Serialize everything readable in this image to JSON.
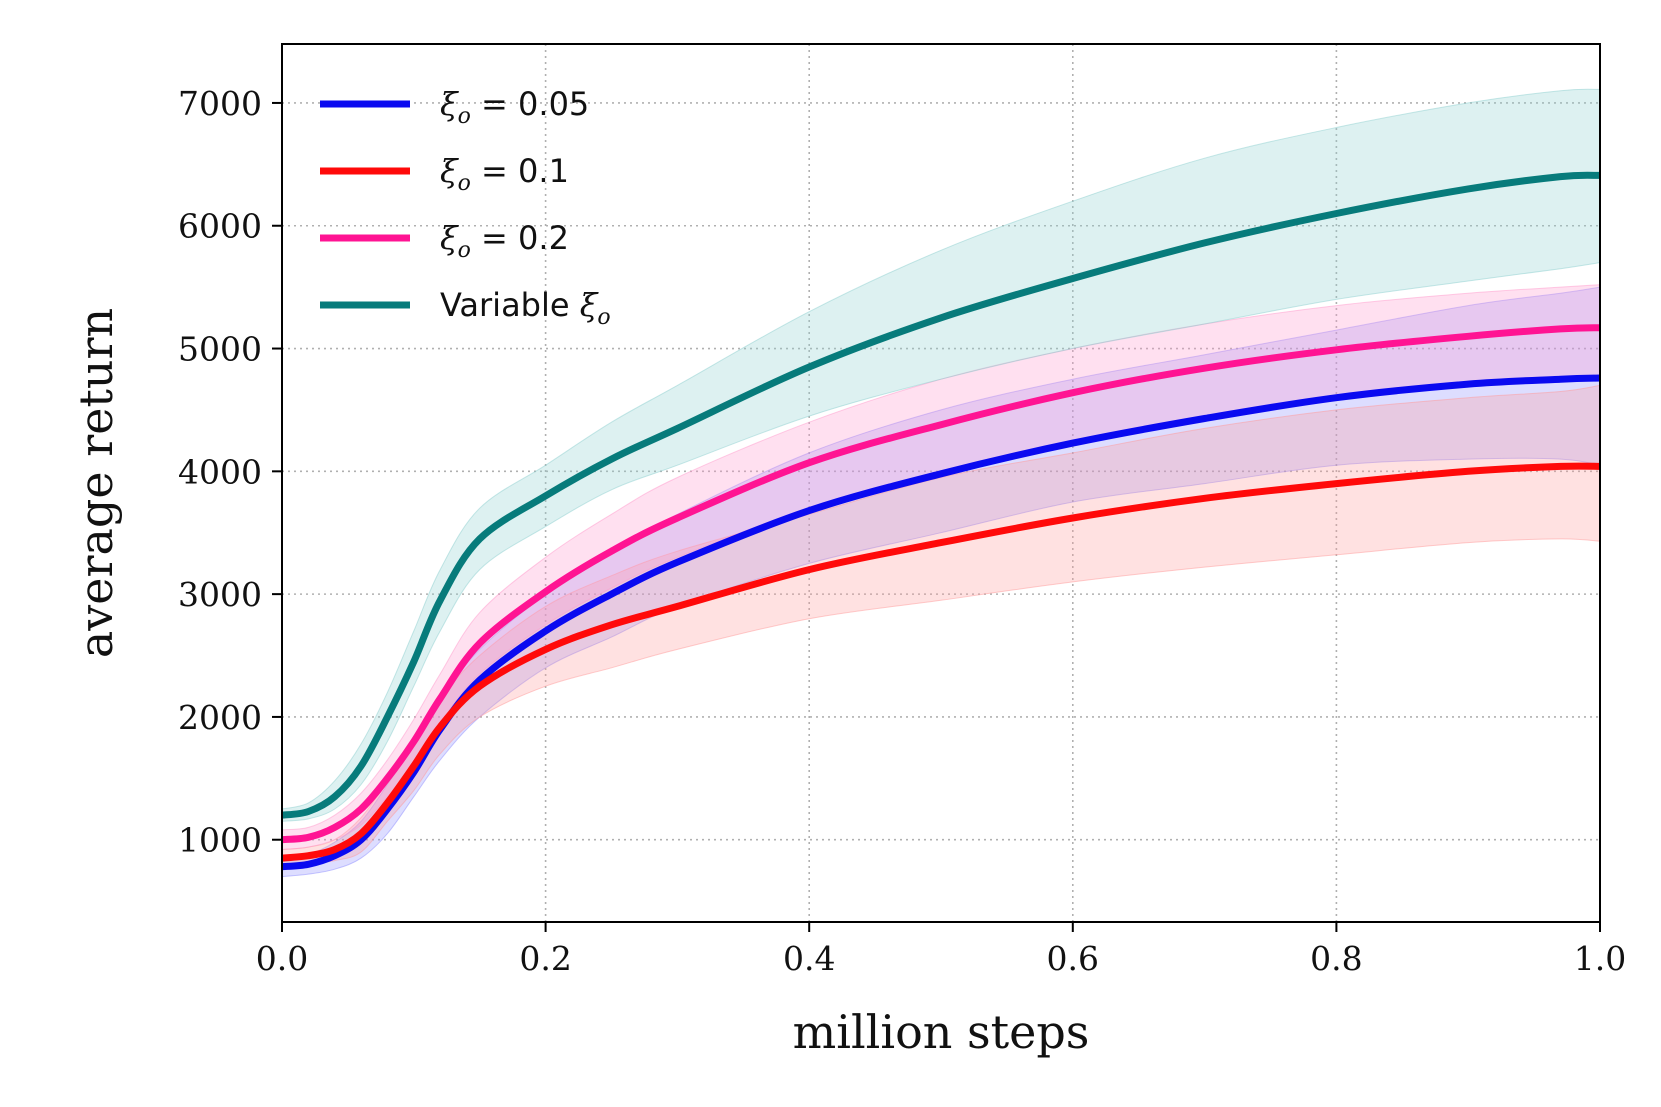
{
  "chart_data": {
    "type": "line",
    "title": "",
    "xlabel": "million steps",
    "ylabel": "average return",
    "xlim": [
      0.0,
      1.0
    ],
    "ylim": [
      330,
      7480
    ],
    "grid": true,
    "legend_position": "top-left",
    "x_ticks": [
      "0.0",
      "0.2",
      "0.4",
      "0.6",
      "0.8",
      "1.0"
    ],
    "y_ticks": [
      "1000",
      "2000",
      "3000",
      "4000",
      "5000",
      "6000",
      "7000"
    ],
    "x": [
      0.0,
      0.02,
      0.04,
      0.06,
      0.08,
      0.1,
      0.12,
      0.15,
      0.2,
      0.25,
      0.3,
      0.4,
      0.5,
      0.6,
      0.7,
      0.8,
      0.9,
      0.97,
      1.0
    ],
    "series": [
      {
        "name": "ξ_o = 0.05",
        "label_symbol": "ξ",
        "label_sub": "o",
        "label_rest": " = 0.05",
        "color": "#0a0af0",
        "band_color": "#9090ff",
        "values": [
          780,
          800,
          870,
          1000,
          1250,
          1550,
          1900,
          2300,
          2700,
          3000,
          3260,
          3680,
          3980,
          4230,
          4430,
          4600,
          4710,
          4750,
          4760
        ],
        "lower": [
          700,
          720,
          760,
          850,
          1050,
          1350,
          1650,
          2000,
          2400,
          2650,
          2900,
          3250,
          3500,
          3750,
          3900,
          4050,
          4100,
          4100,
          4050
        ],
        "upper": [
          850,
          880,
          980,
          1150,
          1450,
          1780,
          2150,
          2550,
          3000,
          3350,
          3650,
          4150,
          4500,
          4750,
          4950,
          5150,
          5350,
          5450,
          5500
        ]
      },
      {
        "name": "ξ_o = 0.1",
        "label_symbol": "ξ",
        "label_sub": "o",
        "label_rest": " = 0.1",
        "color": "#ff0a0a",
        "band_color": "#ff9a9a",
        "values": [
          850,
          870,
          920,
          1050,
          1300,
          1600,
          1920,
          2250,
          2550,
          2750,
          2900,
          3200,
          3420,
          3620,
          3780,
          3900,
          4000,
          4040,
          4040
        ],
        "lower": [
          780,
          800,
          830,
          900,
          1150,
          1400,
          1700,
          2000,
          2250,
          2400,
          2550,
          2800,
          2950,
          3100,
          3220,
          3320,
          3420,
          3450,
          3430
        ],
        "upper": [
          920,
          940,
          1000,
          1180,
          1480,
          1800,
          2150,
          2500,
          2900,
          3150,
          3350,
          3650,
          3950,
          4150,
          4350,
          4500,
          4600,
          4650,
          4700
        ]
      },
      {
        "name": "ξ_o = 0.2",
        "label_symbol": "ξ",
        "label_sub": "o",
        "label_rest": " = 0.2",
        "color": "#ff1493",
        "band_color": "#ff99cc",
        "values": [
          1000,
          1020,
          1100,
          1250,
          1500,
          1800,
          2150,
          2600,
          3020,
          3350,
          3620,
          4070,
          4380,
          4640,
          4840,
          4990,
          5100,
          5160,
          5170
        ],
        "lower": [
          920,
          940,
          1000,
          1120,
          1350,
          1620,
          1950,
          2350,
          2750,
          3050,
          3300,
          3700,
          4000,
          4250,
          4450,
          4600,
          4700,
          4750,
          4750
        ],
        "upper": [
          1080,
          1100,
          1200,
          1380,
          1650,
          1980,
          2350,
          2850,
          3300,
          3650,
          3950,
          4400,
          4750,
          5000,
          5200,
          5350,
          5450,
          5500,
          5520
        ]
      },
      {
        "name": "Variable ξ_o",
        "label_symbol": "ξ",
        "label_sub": "o",
        "label_prefix": "Variable ",
        "label_rest": "",
        "color": "#077b7b",
        "band_color": "#8ecfcf",
        "values": [
          1200,
          1230,
          1350,
          1600,
          2000,
          2450,
          2950,
          3450,
          3800,
          4100,
          4350,
          4850,
          5250,
          5570,
          5860,
          6100,
          6300,
          6400,
          6410
        ],
        "lower": [
          1150,
          1170,
          1250,
          1450,
          1800,
          2250,
          2700,
          3200,
          3550,
          3850,
          4050,
          4450,
          4750,
          5000,
          5200,
          5400,
          5550,
          5650,
          5700
        ],
        "upper": [
          1250,
          1300,
          1480,
          1780,
          2200,
          2700,
          3200,
          3700,
          4050,
          4400,
          4700,
          5300,
          5800,
          6200,
          6550,
          6800,
          7000,
          7100,
          7110
        ]
      }
    ]
  }
}
